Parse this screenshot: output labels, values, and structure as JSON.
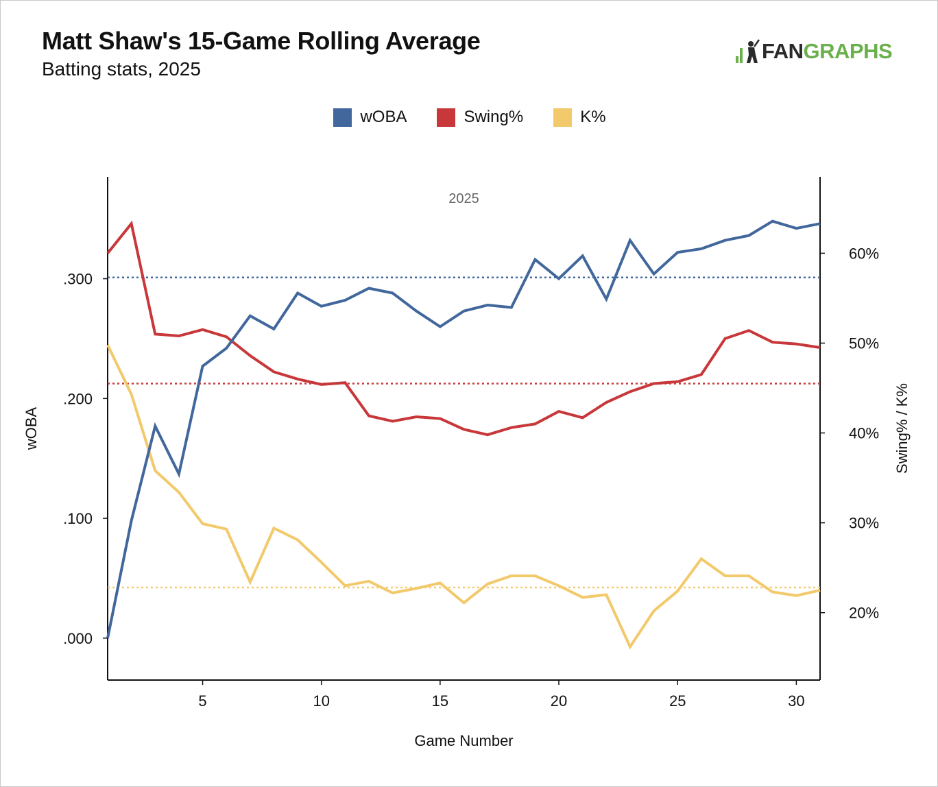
{
  "header": {
    "title": "Matt Shaw's 15-Game Rolling Average",
    "subtitle": "Batting stats, 2025",
    "logo_left": "FAN",
    "logo_right": "GRAPHS"
  },
  "colors": {
    "woba": "#41679c",
    "swing": "#c8373a",
    "k": "#f2c96b",
    "logo_green": "#6ab04c"
  },
  "chart_data": {
    "type": "line",
    "title": "Matt Shaw's 15-Game Rolling Average",
    "subtitle": "Batting stats, 2025",
    "facet_label": "2025",
    "xlabel": "Game Number",
    "ylabel_left": "wOBA",
    "ylabel_right": "Swing% / K%",
    "xlim": [
      1,
      31
    ],
    "x_ticks": [
      5,
      10,
      15,
      20,
      25,
      30
    ],
    "ylim_left": [
      -0.035,
      0.385
    ],
    "y_ticks_left": [
      0.0,
      0.1,
      0.2,
      0.3
    ],
    "y_tick_labels_left": [
      ".000",
      ".100",
      ".200",
      ".300"
    ],
    "ylim_right": [
      12.5,
      68.5
    ],
    "y_ticks_right": [
      20,
      30,
      40,
      50,
      60
    ],
    "y_tick_labels_right": [
      "20%",
      "30%",
      "40%",
      "50%",
      "60%"
    ],
    "legend_position": "top-center",
    "grid": false,
    "x": [
      1,
      2,
      3,
      4,
      5,
      6,
      7,
      8,
      9,
      10,
      11,
      12,
      13,
      14,
      15,
      16,
      17,
      18,
      19,
      20,
      21,
      22,
      23,
      24,
      25,
      26,
      27,
      28,
      29,
      30,
      31
    ],
    "series": [
      {
        "name": "wOBA",
        "axis": "left",
        "values": [
          0.0,
          0.098,
          0.177,
          0.137,
          0.227,
          0.242,
          0.269,
          0.258,
          0.288,
          0.277,
          0.282,
          0.292,
          0.288,
          0.273,
          0.26,
          0.273,
          0.278,
          0.276,
          0.316,
          0.3,
          0.319,
          0.283,
          0.332,
          0.304,
          0.322,
          0.325,
          0.332,
          0.336,
          0.348,
          0.342,
          0.346
        ],
        "reference": 0.301
      },
      {
        "name": "Swing%",
        "axis": "right",
        "values": [
          60.0,
          63.3,
          51.0,
          50.8,
          51.5,
          50.7,
          48.6,
          46.8,
          46.0,
          45.4,
          45.6,
          41.9,
          41.3,
          41.8,
          41.6,
          40.4,
          39.8,
          40.6,
          41.0,
          42.4,
          41.7,
          43.4,
          44.6,
          45.5,
          45.7,
          46.5,
          50.5,
          51.4,
          50.1,
          49.9,
          49.5
        ],
        "reference": 45.5
      },
      {
        "name": "K%",
        "axis": "right",
        "values": [
          49.8,
          44.3,
          35.8,
          33.4,
          29.9,
          29.3,
          23.4,
          29.4,
          28.1,
          25.6,
          23.0,
          23.5,
          22.2,
          22.7,
          23.3,
          21.1,
          23.2,
          24.1,
          24.1,
          23.0,
          21.7,
          22.0,
          16.2,
          20.2,
          22.4,
          26.0,
          24.1,
          24.1,
          22.3,
          21.9,
          22.5
        ],
        "reference": 22.8
      }
    ]
  }
}
